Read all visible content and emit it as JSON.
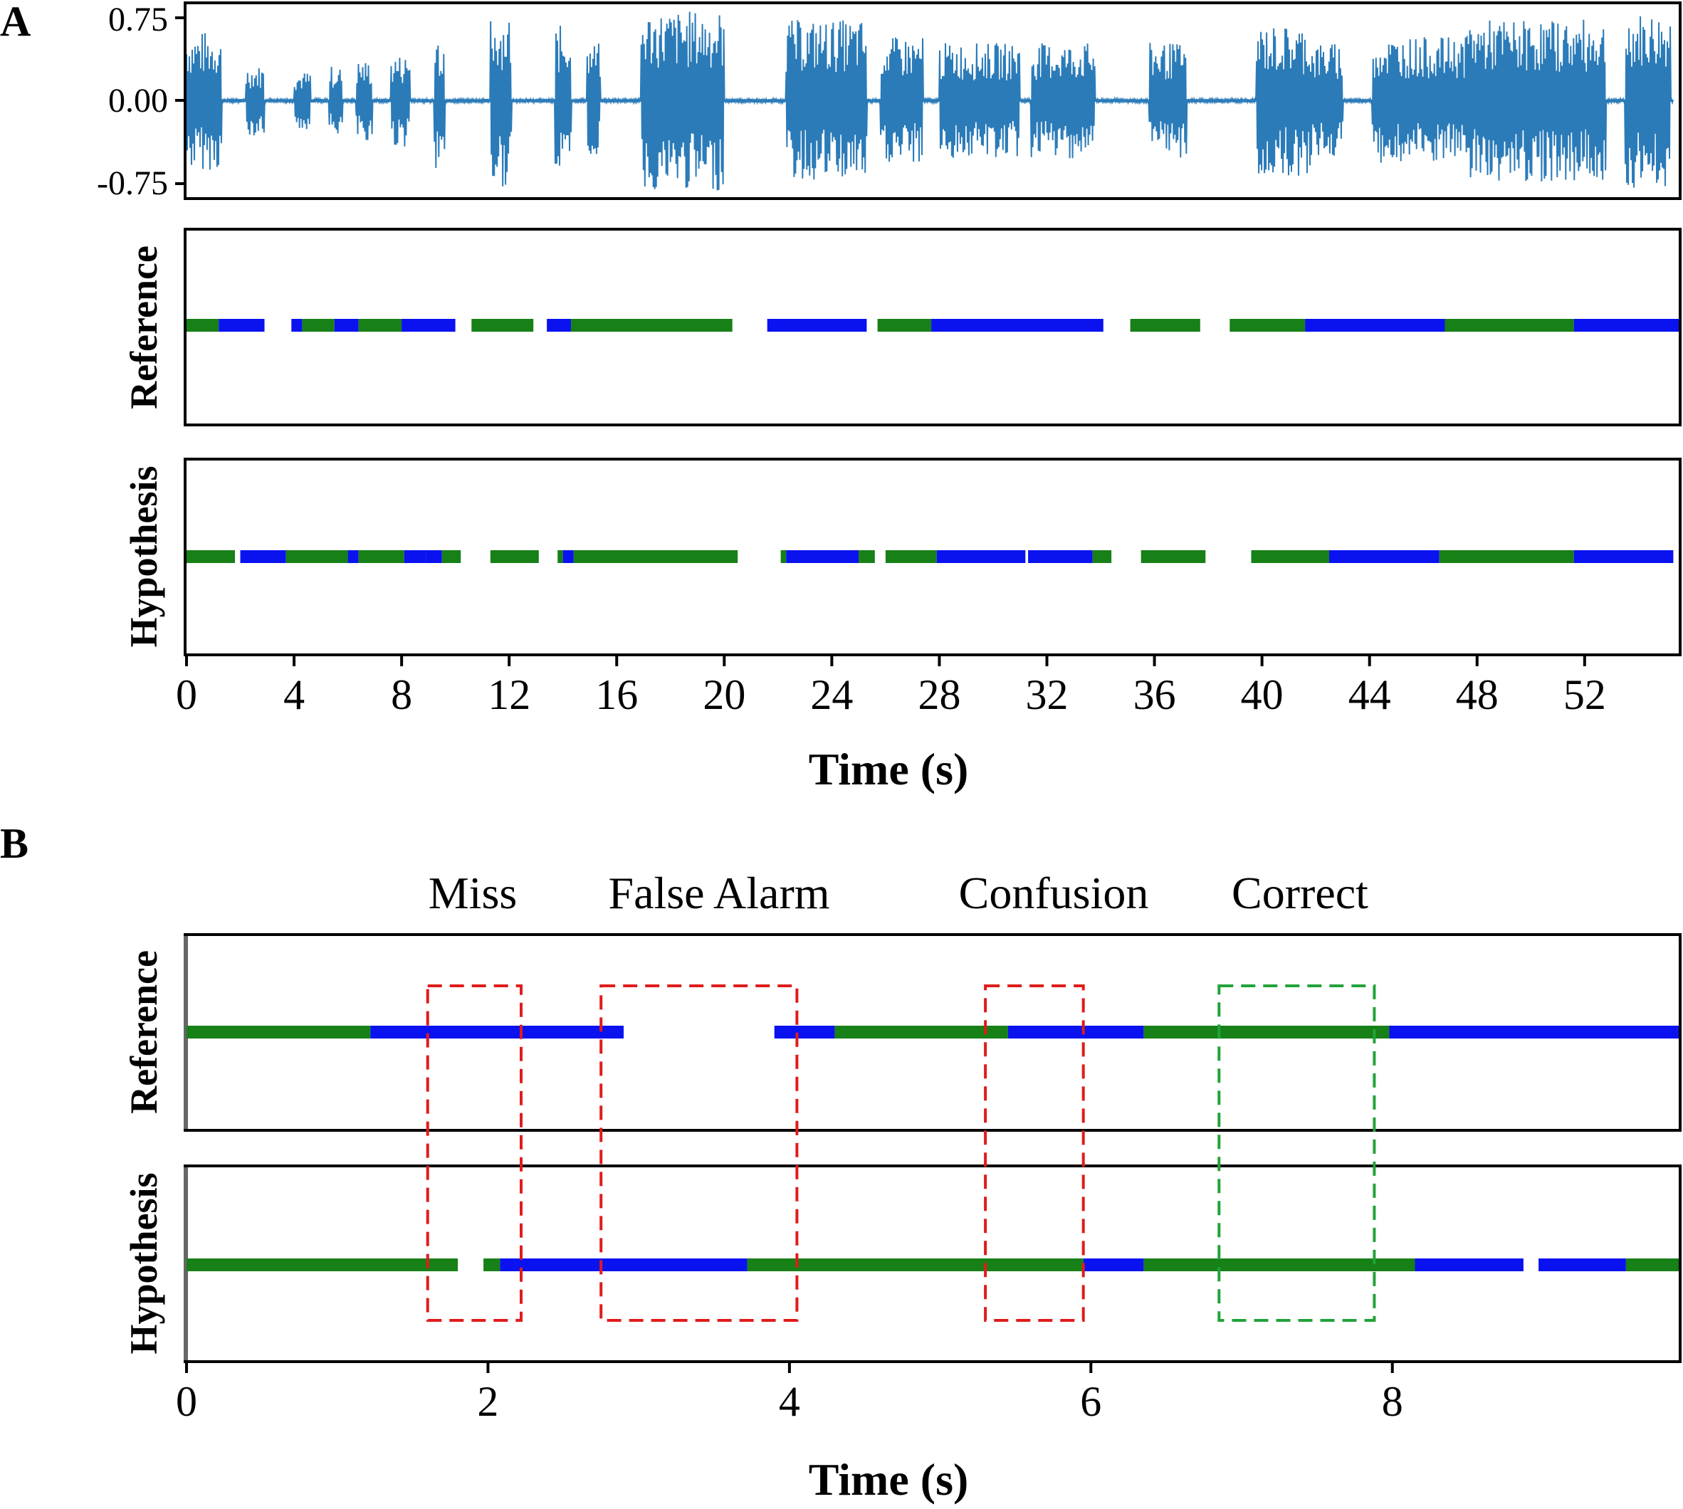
{
  "colors": {
    "waveform": "#2b7bb9",
    "speaker_a": "#178017",
    "speaker_b": "#0a12f0",
    "error_box": "#e01b1b",
    "correct_box": "#22a23a",
    "frame": "#000000"
  },
  "panel_a": {
    "label": "A",
    "waveform": {
      "ytick_labels": [
        "0.75",
        "0.00",
        "-0.75"
      ],
      "yticks": [
        0.75,
        0.0,
        -0.75
      ],
      "ylim": [
        -0.82,
        0.82
      ]
    },
    "reference_label": "Reference",
    "hypothesis_label": "Hypothesis",
    "xlabel": "Time (s)",
    "xlim": [
      0,
      55.5
    ],
    "xtick_labels": [
      "0",
      "4",
      "8",
      "12",
      "16",
      "20",
      "24",
      "28",
      "32",
      "36",
      "40",
      "44",
      "48",
      "52"
    ],
    "xticks": [
      0,
      4,
      8,
      12,
      16,
      20,
      24,
      28,
      32,
      36,
      40,
      44,
      48,
      52
    ]
  },
  "panel_b": {
    "label": "B",
    "categories": [
      "Miss",
      "False Alarm",
      "Confusion",
      "Correct"
    ],
    "reference_label": "Reference",
    "hypothesis_label": "Hypothesis",
    "xlabel": "Time (s)",
    "xlim": [
      0,
      9.9
    ],
    "xtick_labels": [
      "0",
      "2",
      "4",
      "6",
      "8"
    ],
    "xticks": [
      0,
      2,
      4,
      6,
      8
    ]
  },
  "chart_data": [
    {
      "type": "line",
      "title": "",
      "ylim": [
        -0.82,
        0.82
      ],
      "series": [
        {
          "speech_bursts": [
            {
              "x": [
                0.0,
                1.3
              ],
              "amplitude": 0.6
            },
            {
              "x": [
                2.2,
                2.9
              ],
              "amplitude": 0.3
            },
            {
              "x": [
                4.0,
                4.6
              ],
              "amplitude": 0.25
            },
            {
              "x": [
                5.3,
                5.8
              ],
              "amplitude": 0.3
            },
            {
              "x": [
                6.3,
                6.9
              ],
              "amplitude": 0.35
            },
            {
              "x": [
                7.6,
                8.3
              ],
              "amplitude": 0.4
            },
            {
              "x": [
                9.2,
                9.6
              ],
              "amplitude": 0.6
            },
            {
              "x": [
                11.3,
                12.1
              ],
              "amplitude": 0.75
            },
            {
              "x": [
                13.7,
                14.3
              ],
              "amplitude": 0.65
            },
            {
              "x": [
                14.9,
                15.4
              ],
              "amplitude": 0.5
            },
            {
              "x": [
                16.9,
                20.0
              ],
              "amplitude": 0.78
            },
            {
              "x": [
                22.3,
                25.3
              ],
              "amplitude": 0.7
            },
            {
              "x": [
                25.8,
                27.4
              ],
              "amplitude": 0.55
            },
            {
              "x": [
                28.0,
                31.0
              ],
              "amplitude": 0.5
            },
            {
              "x": [
                31.4,
                33.8
              ],
              "amplitude": 0.5
            },
            {
              "x": [
                35.8,
                37.2
              ],
              "amplitude": 0.5
            },
            {
              "x": [
                39.8,
                41.8
              ],
              "amplitude": 0.65
            },
            {
              "x": [
                41.8,
                43.0
              ],
              "amplitude": 0.5
            },
            {
              "x": [
                44.1,
                47.6
              ],
              "amplitude": 0.55
            },
            {
              "x": [
                47.6,
                52.8
              ],
              "amplitude": 0.7
            },
            {
              "x": [
                53.5,
                55.2
              ],
              "amplitude": 0.75
            }
          ]
        }
      ]
    },
    {
      "type": "bar",
      "title": "",
      "xlabel": "Time (s)",
      "xlim": [
        0,
        55.5
      ],
      "series": [
        {
          "segments": [
            {
              "start": 0.0,
              "end": 1.2,
              "speaker": "speaker_a"
            },
            {
              "start": 1.2,
              "end": 2.9,
              "speaker": "speaker_b"
            },
            {
              "start": 3.9,
              "end": 4.3,
              "speaker": "speaker_b"
            },
            {
              "start": 4.3,
              "end": 5.5,
              "speaker": "speaker_a"
            },
            {
              "start": 5.5,
              "end": 6.4,
              "speaker": "speaker_b"
            },
            {
              "start": 6.4,
              "end": 8.0,
              "speaker": "speaker_a"
            },
            {
              "start": 8.0,
              "end": 10.0,
              "speaker": "speaker_b"
            },
            {
              "start": 10.6,
              "end": 12.9,
              "speaker": "speaker_a"
            },
            {
              "start": 13.4,
              "end": 14.3,
              "speaker": "speaker_b"
            },
            {
              "start": 14.3,
              "end": 20.3,
              "speaker": "speaker_a"
            },
            {
              "start": 21.6,
              "end": 25.3,
              "speaker": "speaker_b"
            },
            {
              "start": 25.7,
              "end": 27.7,
              "speaker": "speaker_a"
            },
            {
              "start": 27.7,
              "end": 34.1,
              "speaker": "speaker_b"
            },
            {
              "start": 35.1,
              "end": 37.7,
              "speaker": "speaker_a"
            },
            {
              "start": 38.8,
              "end": 41.6,
              "speaker": "speaker_a"
            },
            {
              "start": 41.6,
              "end": 46.8,
              "speaker": "speaker_b"
            },
            {
              "start": 46.8,
              "end": 51.6,
              "speaker": "speaker_a"
            },
            {
              "start": 51.6,
              "end": 55.5,
              "speaker": "speaker_b"
            }
          ]
        },
        {
          "segments": [
            {
              "start": 0.0,
              "end": 1.8,
              "speaker": "speaker_a"
            },
            {
              "start": 2.0,
              "end": 3.7,
              "speaker": "speaker_b"
            },
            {
              "start": 3.7,
              "end": 6.0,
              "speaker": "speaker_a"
            },
            {
              "start": 6.0,
              "end": 6.4,
              "speaker": "speaker_b"
            },
            {
              "start": 6.4,
              "end": 8.1,
              "speaker": "speaker_a"
            },
            {
              "start": 8.1,
              "end": 8.9,
              "speaker": "speaker_b"
            },
            {
              "start": 8.9,
              "end": 9.5,
              "speaker": "speaker_b"
            },
            {
              "start": 9.5,
              "end": 10.2,
              "speaker": "speaker_a"
            },
            {
              "start": 11.3,
              "end": 13.1,
              "speaker": "speaker_a"
            },
            {
              "start": 13.8,
              "end": 14.0,
              "speaker": "speaker_a"
            },
            {
              "start": 14.0,
              "end": 14.4,
              "speaker": "speaker_b"
            },
            {
              "start": 14.4,
              "end": 20.5,
              "speaker": "speaker_a"
            },
            {
              "start": 22.1,
              "end": 22.3,
              "speaker": "speaker_a"
            },
            {
              "start": 22.3,
              "end": 25.0,
              "speaker": "speaker_b"
            },
            {
              "start": 25.0,
              "end": 25.6,
              "speaker": "speaker_a"
            },
            {
              "start": 26.0,
              "end": 27.9,
              "speaker": "speaker_a"
            },
            {
              "start": 27.9,
              "end": 31.2,
              "speaker": "speaker_b"
            },
            {
              "start": 31.3,
              "end": 33.7,
              "speaker": "speaker_b"
            },
            {
              "start": 33.7,
              "end": 34.4,
              "speaker": "speaker_a"
            },
            {
              "start": 35.5,
              "end": 37.9,
              "speaker": "speaker_a"
            },
            {
              "start": 39.6,
              "end": 42.5,
              "speaker": "speaker_a"
            },
            {
              "start": 42.5,
              "end": 46.6,
              "speaker": "speaker_b"
            },
            {
              "start": 46.6,
              "end": 51.6,
              "speaker": "speaker_a"
            },
            {
              "start": 51.6,
              "end": 55.3,
              "speaker": "speaker_b"
            }
          ]
        }
      ]
    },
    {
      "type": "bar",
      "title": "",
      "xlabel": "Time (s)",
      "xlim": [
        0,
        9.9
      ],
      "series": [
        {
          "segments": [
            {
              "start": 0.0,
              "end": 1.22,
              "speaker": "speaker_a"
            },
            {
              "start": 1.22,
              "end": 2.9,
              "speaker": "speaker_b"
            },
            {
              "start": 3.9,
              "end": 4.3,
              "speaker": "speaker_b"
            },
            {
              "start": 4.3,
              "end": 5.45,
              "speaker": "speaker_a"
            },
            {
              "start": 5.45,
              "end": 6.35,
              "speaker": "speaker_b"
            },
            {
              "start": 6.35,
              "end": 7.98,
              "speaker": "speaker_a"
            },
            {
              "start": 7.98,
              "end": 9.9,
              "speaker": "speaker_b"
            }
          ]
        },
        {
          "segments": [
            {
              "start": 0.0,
              "end": 1.8,
              "speaker": "speaker_a"
            },
            {
              "start": 1.97,
              "end": 2.08,
              "speaker": "speaker_a"
            },
            {
              "start": 2.08,
              "end": 3.72,
              "speaker": "speaker_b"
            },
            {
              "start": 3.72,
              "end": 5.95,
              "speaker": "speaker_a"
            },
            {
              "start": 5.95,
              "end": 6.35,
              "speaker": "speaker_b"
            },
            {
              "start": 6.35,
              "end": 8.15,
              "speaker": "speaker_a"
            },
            {
              "start": 8.15,
              "end": 8.87,
              "speaker": "speaker_b"
            },
            {
              "start": 8.97,
              "end": 9.55,
              "speaker": "speaker_b"
            },
            {
              "start": 9.55,
              "end": 9.9,
              "speaker": "speaker_a"
            }
          ]
        }
      ],
      "annotations": [
        {
          "label": "Miss",
          "x": [
            1.6,
            2.22
          ],
          "kind": "error"
        },
        {
          "label": "False Alarm",
          "x": [
            2.75,
            4.05
          ],
          "kind": "error"
        },
        {
          "label": "Confusion",
          "x": [
            5.3,
            5.95
          ],
          "kind": "error"
        },
        {
          "label": "Correct",
          "x": [
            6.85,
            7.88
          ],
          "kind": "correct"
        }
      ]
    }
  ]
}
